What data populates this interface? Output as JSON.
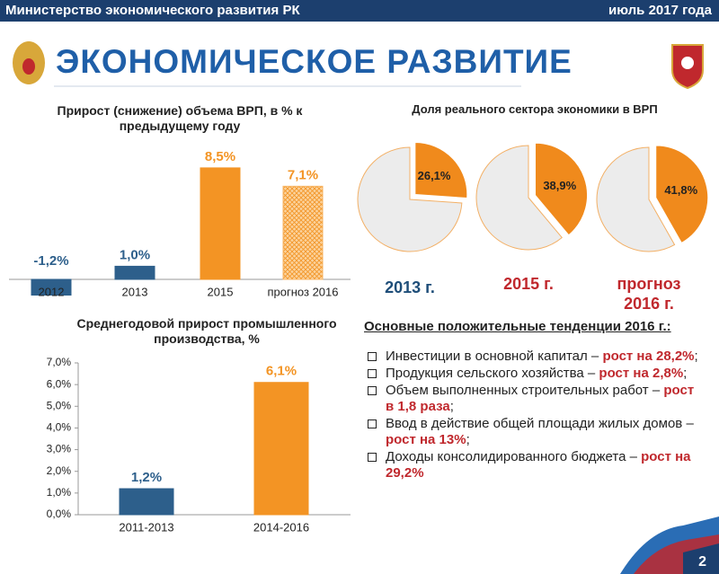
{
  "header": {
    "left": "Министерство экономического развития РК",
    "right": "июль 2017 года",
    "title": "ЭКОНОМИЧЕСКОЕ РАЗВИТИЕ"
  },
  "chart_data": [
    {
      "type": "bar",
      "title": "Прирост (снижение) объема ВРП, в % к предыдущему году",
      "categories": [
        "2012",
        "2013",
        "2015",
        "прогноз 2016"
      ],
      "values": [
        -1.2,
        1.0,
        8.5,
        7.1
      ],
      "value_labels": [
        "-1,2%",
        "1,0%",
        "8,5%",
        "7,1%"
      ],
      "colors": [
        "#2d5f8b",
        "#2d5f8b",
        "#f39424",
        "#f7b565"
      ],
      "hatch": [
        false,
        false,
        false,
        true
      ]
    },
    {
      "type": "pie",
      "title": "Доля реального сектора экономики в ВРП",
      "categories": [
        "2013 г.",
        "2015 г.",
        "прогноз 2016 г."
      ],
      "values": [
        26.1,
        38.9,
        41.8
      ],
      "value_labels": [
        "26,1%",
        "38,9%",
        "41,8%"
      ],
      "color": "#f08a1c",
      "label_colors": [
        "#1f4e79",
        "#c0282d",
        "#c0282d"
      ]
    },
    {
      "type": "bar",
      "title": "Среднегодовой прирост промышленного производства, %",
      "categories": [
        "2011-2013",
        "2014-2016"
      ],
      "values": [
        1.2,
        6.1
      ],
      "value_labels": [
        "1,2%",
        "6,1%"
      ],
      "colors": [
        "#2d5f8b",
        "#f39424"
      ],
      "ylim": [
        0,
        7
      ],
      "yticks": [
        {
          "value": 0,
          "label": "0,0%"
        },
        {
          "value": 1,
          "label": "1,0%"
        },
        {
          "value": 2,
          "label": "2,0%"
        },
        {
          "value": 3,
          "label": "3,0%"
        },
        {
          "value": 4,
          "label": "4,0%"
        },
        {
          "value": 5,
          "label": "5,0%"
        },
        {
          "value": 6,
          "label": "6,0%"
        },
        {
          "value": 7,
          "label": "7,0%"
        }
      ]
    }
  ],
  "trends": {
    "title": "Основные положительные тенденции 2016 г.:",
    "items": [
      [
        "Инвестиции в основной капитал – ",
        "рост на 28,2%",
        ";"
      ],
      [
        "Продукция сельского хозяйства – ",
        "рост на 2,8%",
        ";"
      ],
      [
        "Объем выполненных строительных работ – ",
        "рост в 1,8 раза",
        ";"
      ],
      [
        "Ввод в действие общей площади жилых домов – ",
        "рост на 13%",
        ";"
      ],
      [
        "Доходы консолидированного бюджета – ",
        "рост на 29,2%"
      ]
    ]
  },
  "page_number": "2"
}
